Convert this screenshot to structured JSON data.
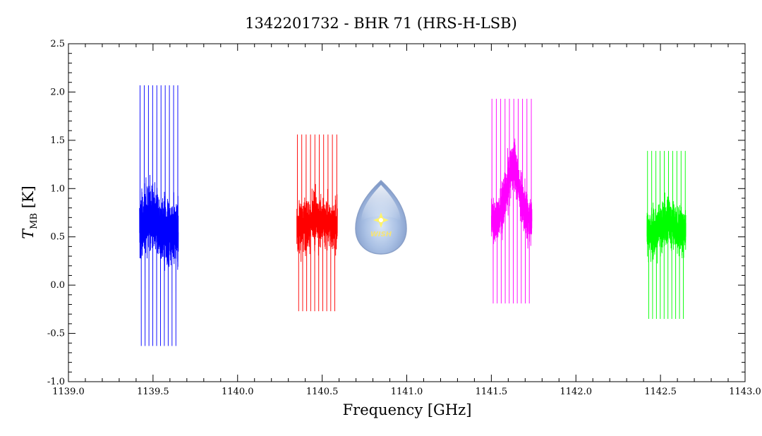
{
  "chart_data": {
    "type": "line",
    "title": "1342201732 - BHR 71 (HRS-H-LSB)",
    "xlabel": "Frequency [GHz]",
    "ylabel_main": "T",
    "ylabel_sub": "MB",
    "ylabel_unit": " [K]",
    "xlim": [
      1139.0,
      1143.0
    ],
    "ylim": [
      -1.0,
      2.5
    ],
    "x_ticks": [
      "1139.0",
      "1139.5",
      "1140.0",
      "1140.5",
      "1141.0",
      "1141.5",
      "1142.0",
      "1142.5",
      "1143.0"
    ],
    "y_ticks": [
      "-1.0",
      "-0.5",
      "0.0",
      "0.5",
      "1.0",
      "1.5",
      "2.0",
      "2.5"
    ],
    "grid": false,
    "series": [
      {
        "color": "#0000ff",
        "x_range": [
          1139.42,
          1139.65
        ],
        "baseline": 0.55,
        "noise": 0.32,
        "peak_center": 1139.48,
        "peak_amp": 0.15,
        "ymin": -0.63,
        "ymax": 2.07
      },
      {
        "color": "#ff0000",
        "x_range": [
          1140.35,
          1140.59
        ],
        "baseline": 0.62,
        "noise": 0.24,
        "peak_center": 1140.47,
        "peak_amp": 0.05,
        "ymin": -0.27,
        "ymax": 1.56
      },
      {
        "color": "#ff00ff",
        "x_range": [
          1141.5,
          1141.74
        ],
        "baseline": 0.68,
        "noise": 0.24,
        "peak_center": 1141.63,
        "peak_amp": 0.55,
        "ymin": -0.19,
        "ymax": 1.93
      },
      {
        "color": "#00ff00",
        "x_range": [
          1142.42,
          1142.65
        ],
        "baseline": 0.55,
        "noise": 0.24,
        "peak_center": 1142.55,
        "peak_amp": 0.1,
        "ymin": -0.35,
        "ymax": 1.39
      }
    ]
  },
  "logo": {
    "text": "WISH",
    "icon": "droplet-logo-icon"
  }
}
